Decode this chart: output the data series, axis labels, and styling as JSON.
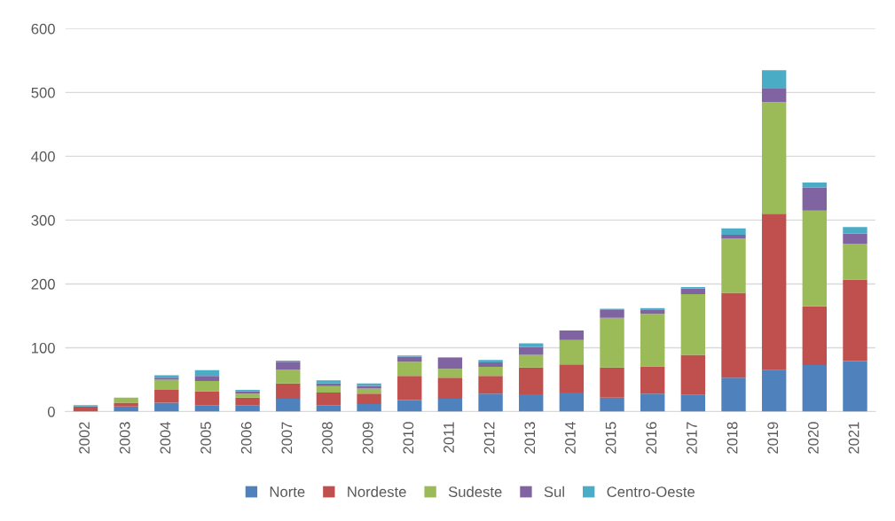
{
  "chart_data": {
    "type": "bar",
    "stacked": true,
    "categories": [
      "2002",
      "2003",
      "2004",
      "2005",
      "2006",
      "2007",
      "2008",
      "2009",
      "2010",
      "2011",
      "2012",
      "2013",
      "2014",
      "2015",
      "2016",
      "2017",
      "2018",
      "2019",
      "2020",
      "2021"
    ],
    "series": [
      {
        "name": "Norte",
        "color": "#4f81bd",
        "values": [
          0,
          8,
          14,
          10,
          10,
          20,
          10,
          12,
          18,
          20,
          28,
          27,
          30,
          22,
          28,
          26,
          53,
          65,
          73,
          79
        ]
      },
      {
        "name": "Nordeste",
        "color": "#c0504d",
        "values": [
          8,
          6,
          20,
          22,
          12,
          24,
          20,
          16,
          38,
          33,
          28,
          42,
          44,
          47,
          43,
          63,
          133,
          245,
          92,
          128
        ]
      },
      {
        "name": "Sudeste",
        "color": "#9bbb59",
        "values": [
          0,
          8,
          16,
          16,
          6,
          22,
          10,
          8,
          22,
          14,
          14,
          20,
          38,
          78,
          82,
          95,
          85,
          175,
          150,
          56
        ]
      },
      {
        "name": "Sul",
        "color": "#8064a2",
        "values": [
          0,
          0,
          3,
          8,
          4,
          12,
          4,
          4,
          8,
          17,
          7,
          12,
          15,
          12,
          7,
          9,
          6,
          22,
          36,
          16
        ]
      },
      {
        "name": "Centro-Oeste",
        "color": "#4bacc6",
        "values": [
          2,
          0,
          4,
          9,
          2,
          2,
          5,
          4,
          2,
          1,
          4,
          6,
          0,
          2,
          2,
          2,
          10,
          28,
          8,
          10
        ]
      }
    ],
    "ylim": [
      0,
      600
    ],
    "yticks": [
      0,
      100,
      200,
      300,
      400,
      500,
      600
    ],
    "grid": "y",
    "legend": "bottom"
  }
}
